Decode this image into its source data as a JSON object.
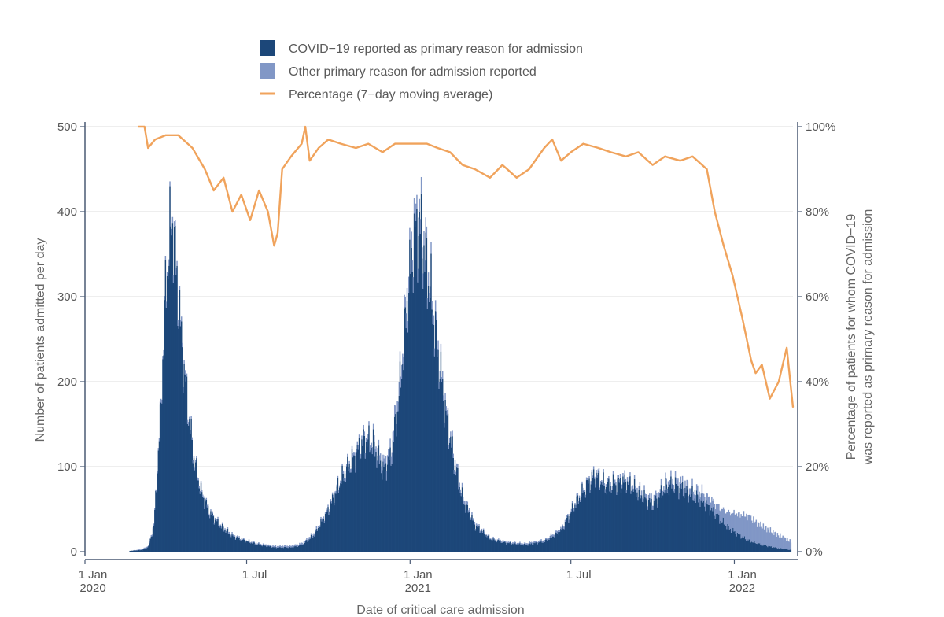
{
  "chart_data": {
    "type": "bar+line",
    "xlabel": "Date of critical care admission",
    "ylabel_left": "Number of patients admitted per day",
    "ylabel_right_line1": "Percentage of patients for whom COVID−19",
    "ylabel_right_line2": "was reported as primary reason for admission",
    "ylim_left": [
      0,
      500
    ],
    "ylim_right": [
      0,
      100
    ],
    "y_ticks_left": [
      0,
      100,
      200,
      300,
      400,
      500
    ],
    "y_ticks_right": [
      "0%",
      "20%",
      "40%",
      "60%",
      "80%",
      "100%"
    ],
    "x_range": [
      "2020-01-01",
      "2022-03-08"
    ],
    "x_ticks": [
      {
        "date": "2020-01-01",
        "line1": "1 Jan",
        "line2": "2020"
      },
      {
        "date": "2020-07-01",
        "line1": "1 Jul",
        "line2": ""
      },
      {
        "date": "2021-01-01",
        "line1": "1 Jan",
        "line2": "2021"
      },
      {
        "date": "2021-07-01",
        "line1": "1 Jul",
        "line2": ""
      },
      {
        "date": "2022-01-01",
        "line1": "1 Jan",
        "line2": "2022"
      }
    ],
    "grid": "horizontal",
    "legend_position": "top",
    "series": [
      {
        "name": "COVID−19 reported as primary reason for admission",
        "kind": "bar",
        "color": "#1c4779",
        "points": [
          [
            "2020-02-20",
            1
          ],
          [
            "2020-03-05",
            2
          ],
          [
            "2020-03-12",
            6
          ],
          [
            "2020-03-18",
            30
          ],
          [
            "2020-03-25",
            150
          ],
          [
            "2020-03-31",
            300
          ],
          [
            "2020-04-04",
            360
          ],
          [
            "2020-04-08",
            390
          ],
          [
            "2020-04-12",
            330
          ],
          [
            "2020-04-18",
            250
          ],
          [
            "2020-04-25",
            170
          ],
          [
            "2020-05-02",
            110
          ],
          [
            "2020-05-10",
            70
          ],
          [
            "2020-05-20",
            45
          ],
          [
            "2020-06-01",
            30
          ],
          [
            "2020-06-15",
            18
          ],
          [
            "2020-07-01",
            12
          ],
          [
            "2020-07-15",
            8
          ],
          [
            "2020-08-01",
            5
          ],
          [
            "2020-08-20",
            5
          ],
          [
            "2020-09-01",
            8
          ],
          [
            "2020-09-15",
            20
          ],
          [
            "2020-10-01",
            50
          ],
          [
            "2020-10-15",
            85
          ],
          [
            "2020-11-01",
            115
          ],
          [
            "2020-11-10",
            130
          ],
          [
            "2020-11-20",
            125
          ],
          [
            "2020-12-01",
            95
          ],
          [
            "2020-12-10",
            110
          ],
          [
            "2020-12-20",
            190
          ],
          [
            "2020-12-28",
            290
          ],
          [
            "2021-01-04",
            360
          ],
          [
            "2021-01-10",
            385
          ],
          [
            "2021-01-18",
            340
          ],
          [
            "2021-01-25",
            290
          ],
          [
            "2021-02-01",
            230
          ],
          [
            "2021-02-10",
            160
          ],
          [
            "2021-02-20",
            100
          ],
          [
            "2021-03-01",
            60
          ],
          [
            "2021-03-15",
            30
          ],
          [
            "2021-04-01",
            15
          ],
          [
            "2021-04-20",
            10
          ],
          [
            "2021-05-10",
            8
          ],
          [
            "2021-06-01",
            12
          ],
          [
            "2021-06-20",
            25
          ],
          [
            "2021-07-05",
            55
          ],
          [
            "2021-07-20",
            80
          ],
          [
            "2021-07-28",
            90
          ],
          [
            "2021-08-10",
            75
          ],
          [
            "2021-08-20",
            80
          ],
          [
            "2021-09-01",
            82
          ],
          [
            "2021-09-15",
            68
          ],
          [
            "2021-10-01",
            55
          ],
          [
            "2021-10-15",
            75
          ],
          [
            "2021-10-25",
            78
          ],
          [
            "2021-11-05",
            72
          ],
          [
            "2021-11-15",
            65
          ],
          [
            "2021-11-25",
            60
          ],
          [
            "2021-12-05",
            50
          ],
          [
            "2021-12-15",
            38
          ],
          [
            "2021-12-25",
            28
          ],
          [
            "2022-01-05",
            20
          ],
          [
            "2022-01-15",
            14
          ],
          [
            "2022-01-25",
            10
          ],
          [
            "2022-02-05",
            7
          ],
          [
            "2022-02-20",
            4
          ],
          [
            "2022-03-05",
            2
          ]
        ]
      },
      {
        "name": "Other primary reason for admission reported",
        "kind": "bar",
        "color": "#8197c6",
        "points": [
          [
            "2020-02-20",
            0
          ],
          [
            "2020-03-20",
            2
          ],
          [
            "2020-04-08",
            8
          ],
          [
            "2020-05-01",
            3
          ],
          [
            "2020-07-01",
            1
          ],
          [
            "2020-10-15",
            3
          ],
          [
            "2020-11-15",
            6
          ],
          [
            "2021-01-10",
            18
          ],
          [
            "2021-02-10",
            6
          ],
          [
            "2021-04-01",
            1
          ],
          [
            "2021-07-15",
            3
          ],
          [
            "2021-09-01",
            4
          ],
          [
            "2021-10-20",
            6
          ],
          [
            "2021-12-01",
            10
          ],
          [
            "2021-12-20",
            15
          ],
          [
            "2022-01-01",
            22
          ],
          [
            "2022-01-15",
            28
          ],
          [
            "2022-02-01",
            22
          ],
          [
            "2022-02-20",
            15
          ],
          [
            "2022-03-05",
            10
          ]
        ]
      },
      {
        "name": "Percentage (7−day moving average)",
        "kind": "line",
        "color": "#f0a35c",
        "points": [
          [
            "2020-03-01",
            100
          ],
          [
            "2020-03-08",
            100
          ],
          [
            "2020-03-12",
            95
          ],
          [
            "2020-03-20",
            97
          ],
          [
            "2020-04-01",
            98
          ],
          [
            "2020-04-15",
            98
          ],
          [
            "2020-05-01",
            95
          ],
          [
            "2020-05-15",
            90
          ],
          [
            "2020-05-25",
            85
          ],
          [
            "2020-06-05",
            88
          ],
          [
            "2020-06-15",
            80
          ],
          [
            "2020-06-25",
            84
          ],
          [
            "2020-07-05",
            78
          ],
          [
            "2020-07-15",
            85
          ],
          [
            "2020-07-25",
            80
          ],
          [
            "2020-08-01",
            72
          ],
          [
            "2020-08-05",
            75
          ],
          [
            "2020-08-10",
            90
          ],
          [
            "2020-08-20",
            93
          ],
          [
            "2020-09-01",
            96
          ],
          [
            "2020-09-05",
            100
          ],
          [
            "2020-09-10",
            92
          ],
          [
            "2020-09-20",
            95
          ],
          [
            "2020-10-01",
            97
          ],
          [
            "2020-10-15",
            96
          ],
          [
            "2020-11-01",
            95
          ],
          [
            "2020-11-15",
            96
          ],
          [
            "2020-12-01",
            94
          ],
          [
            "2020-12-15",
            96
          ],
          [
            "2021-01-01",
            96
          ],
          [
            "2021-01-20",
            96
          ],
          [
            "2021-02-01",
            95
          ],
          [
            "2021-02-15",
            94
          ],
          [
            "2021-03-01",
            91
          ],
          [
            "2021-03-15",
            90
          ],
          [
            "2021-04-01",
            88
          ],
          [
            "2021-04-15",
            91
          ],
          [
            "2021-05-01",
            88
          ],
          [
            "2021-05-15",
            90
          ],
          [
            "2021-06-01",
            95
          ],
          [
            "2021-06-10",
            97
          ],
          [
            "2021-06-20",
            92
          ],
          [
            "2021-07-01",
            94
          ],
          [
            "2021-07-15",
            96
          ],
          [
            "2021-08-01",
            95
          ],
          [
            "2021-08-15",
            94
          ],
          [
            "2021-09-01",
            93
          ],
          [
            "2021-09-15",
            94
          ],
          [
            "2021-10-01",
            91
          ],
          [
            "2021-10-15",
            93
          ],
          [
            "2021-11-01",
            92
          ],
          [
            "2021-11-15",
            93
          ],
          [
            "2021-12-01",
            90
          ],
          [
            "2021-12-10",
            80
          ],
          [
            "2021-12-20",
            72
          ],
          [
            "2021-12-30",
            65
          ],
          [
            "2022-01-10",
            55
          ],
          [
            "2022-01-20",
            45
          ],
          [
            "2022-01-25",
            42
          ],
          [
            "2022-02-01",
            44
          ],
          [
            "2022-02-10",
            36
          ],
          [
            "2022-02-20",
            40
          ],
          [
            "2022-03-01",
            48
          ],
          [
            "2022-03-05",
            40
          ],
          [
            "2022-03-08",
            34
          ]
        ]
      }
    ]
  }
}
